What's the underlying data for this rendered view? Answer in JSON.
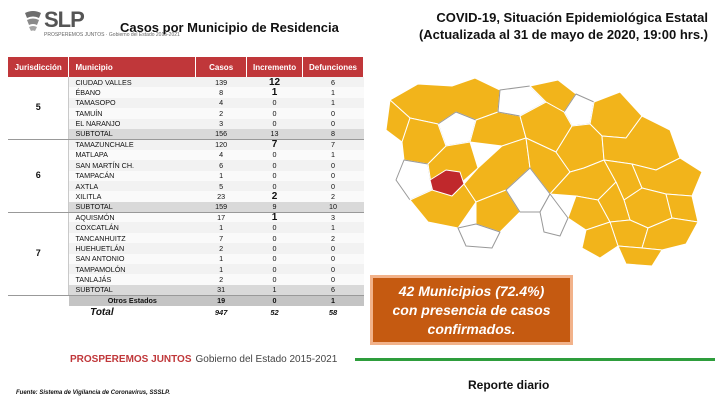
{
  "logo": {
    "text": "SLP",
    "subtitle": "PROSPEREMOS JUNTOS · Gobierno del Estado 2015-2021"
  },
  "header": {
    "left_title": "Casos por Municipio  de Residencia",
    "right_title_1": "COVID-19, Situación Epidemiológica Estatal",
    "right_title_2": "(Actualizada al 31 de mayo de 2020, 19:00 hrs.)"
  },
  "table": {
    "headers": [
      "Jurisdicción",
      "Municipio",
      "Casos",
      "Incremento",
      "Defunciones"
    ],
    "groups": [
      {
        "jurisdiccion": "5",
        "rows": [
          [
            "CIUDAD VALLES",
            "139",
            "12",
            "6"
          ],
          [
            "ÉBANO",
            "8",
            "1",
            "1"
          ],
          [
            "TAMASOPO",
            "4",
            "0",
            "1"
          ],
          [
            "TAMUÍN",
            "2",
            "0",
            "0"
          ],
          [
            "EL NARANJO",
            "3",
            "0",
            "0"
          ]
        ],
        "subtotal": [
          "SUBTOTAL",
          "156",
          "13",
          "8"
        ]
      },
      {
        "jurisdiccion": "6",
        "rows": [
          [
            "TAMAZUNCHALE",
            "120",
            "7",
            "7"
          ],
          [
            "MATLAPA",
            "4",
            "0",
            "1"
          ],
          [
            "SAN MARTÍN  CH.",
            "6",
            "0",
            "0"
          ],
          [
            "TAMPACÁN",
            "1",
            "0",
            "0"
          ],
          [
            "AXTLA",
            "5",
            "0",
            "0"
          ],
          [
            "XILITLA",
            "23",
            "2",
            "2"
          ]
        ],
        "subtotal": [
          "SUBTOTAL",
          "159",
          "9",
          "10"
        ]
      },
      {
        "jurisdiccion": "7",
        "rows": [
          [
            "AQUISMÓN",
            "17",
            "1",
            "3"
          ],
          [
            "COXCATLÁN",
            "1",
            "0",
            "1"
          ],
          [
            "TANCANHUITZ",
            "7",
            "0",
            "2"
          ],
          [
            "HUEHUETLÁN",
            "2",
            "0",
            "0"
          ],
          [
            "SAN ANTONIO",
            "1",
            "0",
            "0"
          ],
          [
            "TAMPAMOLÓN",
            "1",
            "0",
            "0"
          ],
          [
            "TANLAJÁS",
            "2",
            "0",
            "0"
          ]
        ],
        "subtotal": [
          "SUBTOTAL",
          "31",
          "1",
          "6"
        ]
      }
    ],
    "otros": [
      "Otros Estados",
      "19",
      "0",
      "1"
    ],
    "total": [
      "Total",
      "947",
      "52",
      "58"
    ]
  },
  "footer": {
    "brand": "PROSPEREMOS JUNTOS",
    "gobierno": "Gobierno del Estado 2015-2021",
    "fuente": "Fuente: Sistema de Vigilancia de Coronavirus, SSSLP.",
    "reporte": "Reporte diario"
  },
  "callout": {
    "line1": "42 Municipios (72.4%)",
    "line2": "con presencia de casos",
    "line3": "confirmados."
  },
  "colors": {
    "header_red": "#c0373a",
    "map_yellow": "#f2b41b",
    "map_highlight": "#c0282c",
    "callout_orange": "#c55a11",
    "accent_green": "#2e9d3c"
  }
}
